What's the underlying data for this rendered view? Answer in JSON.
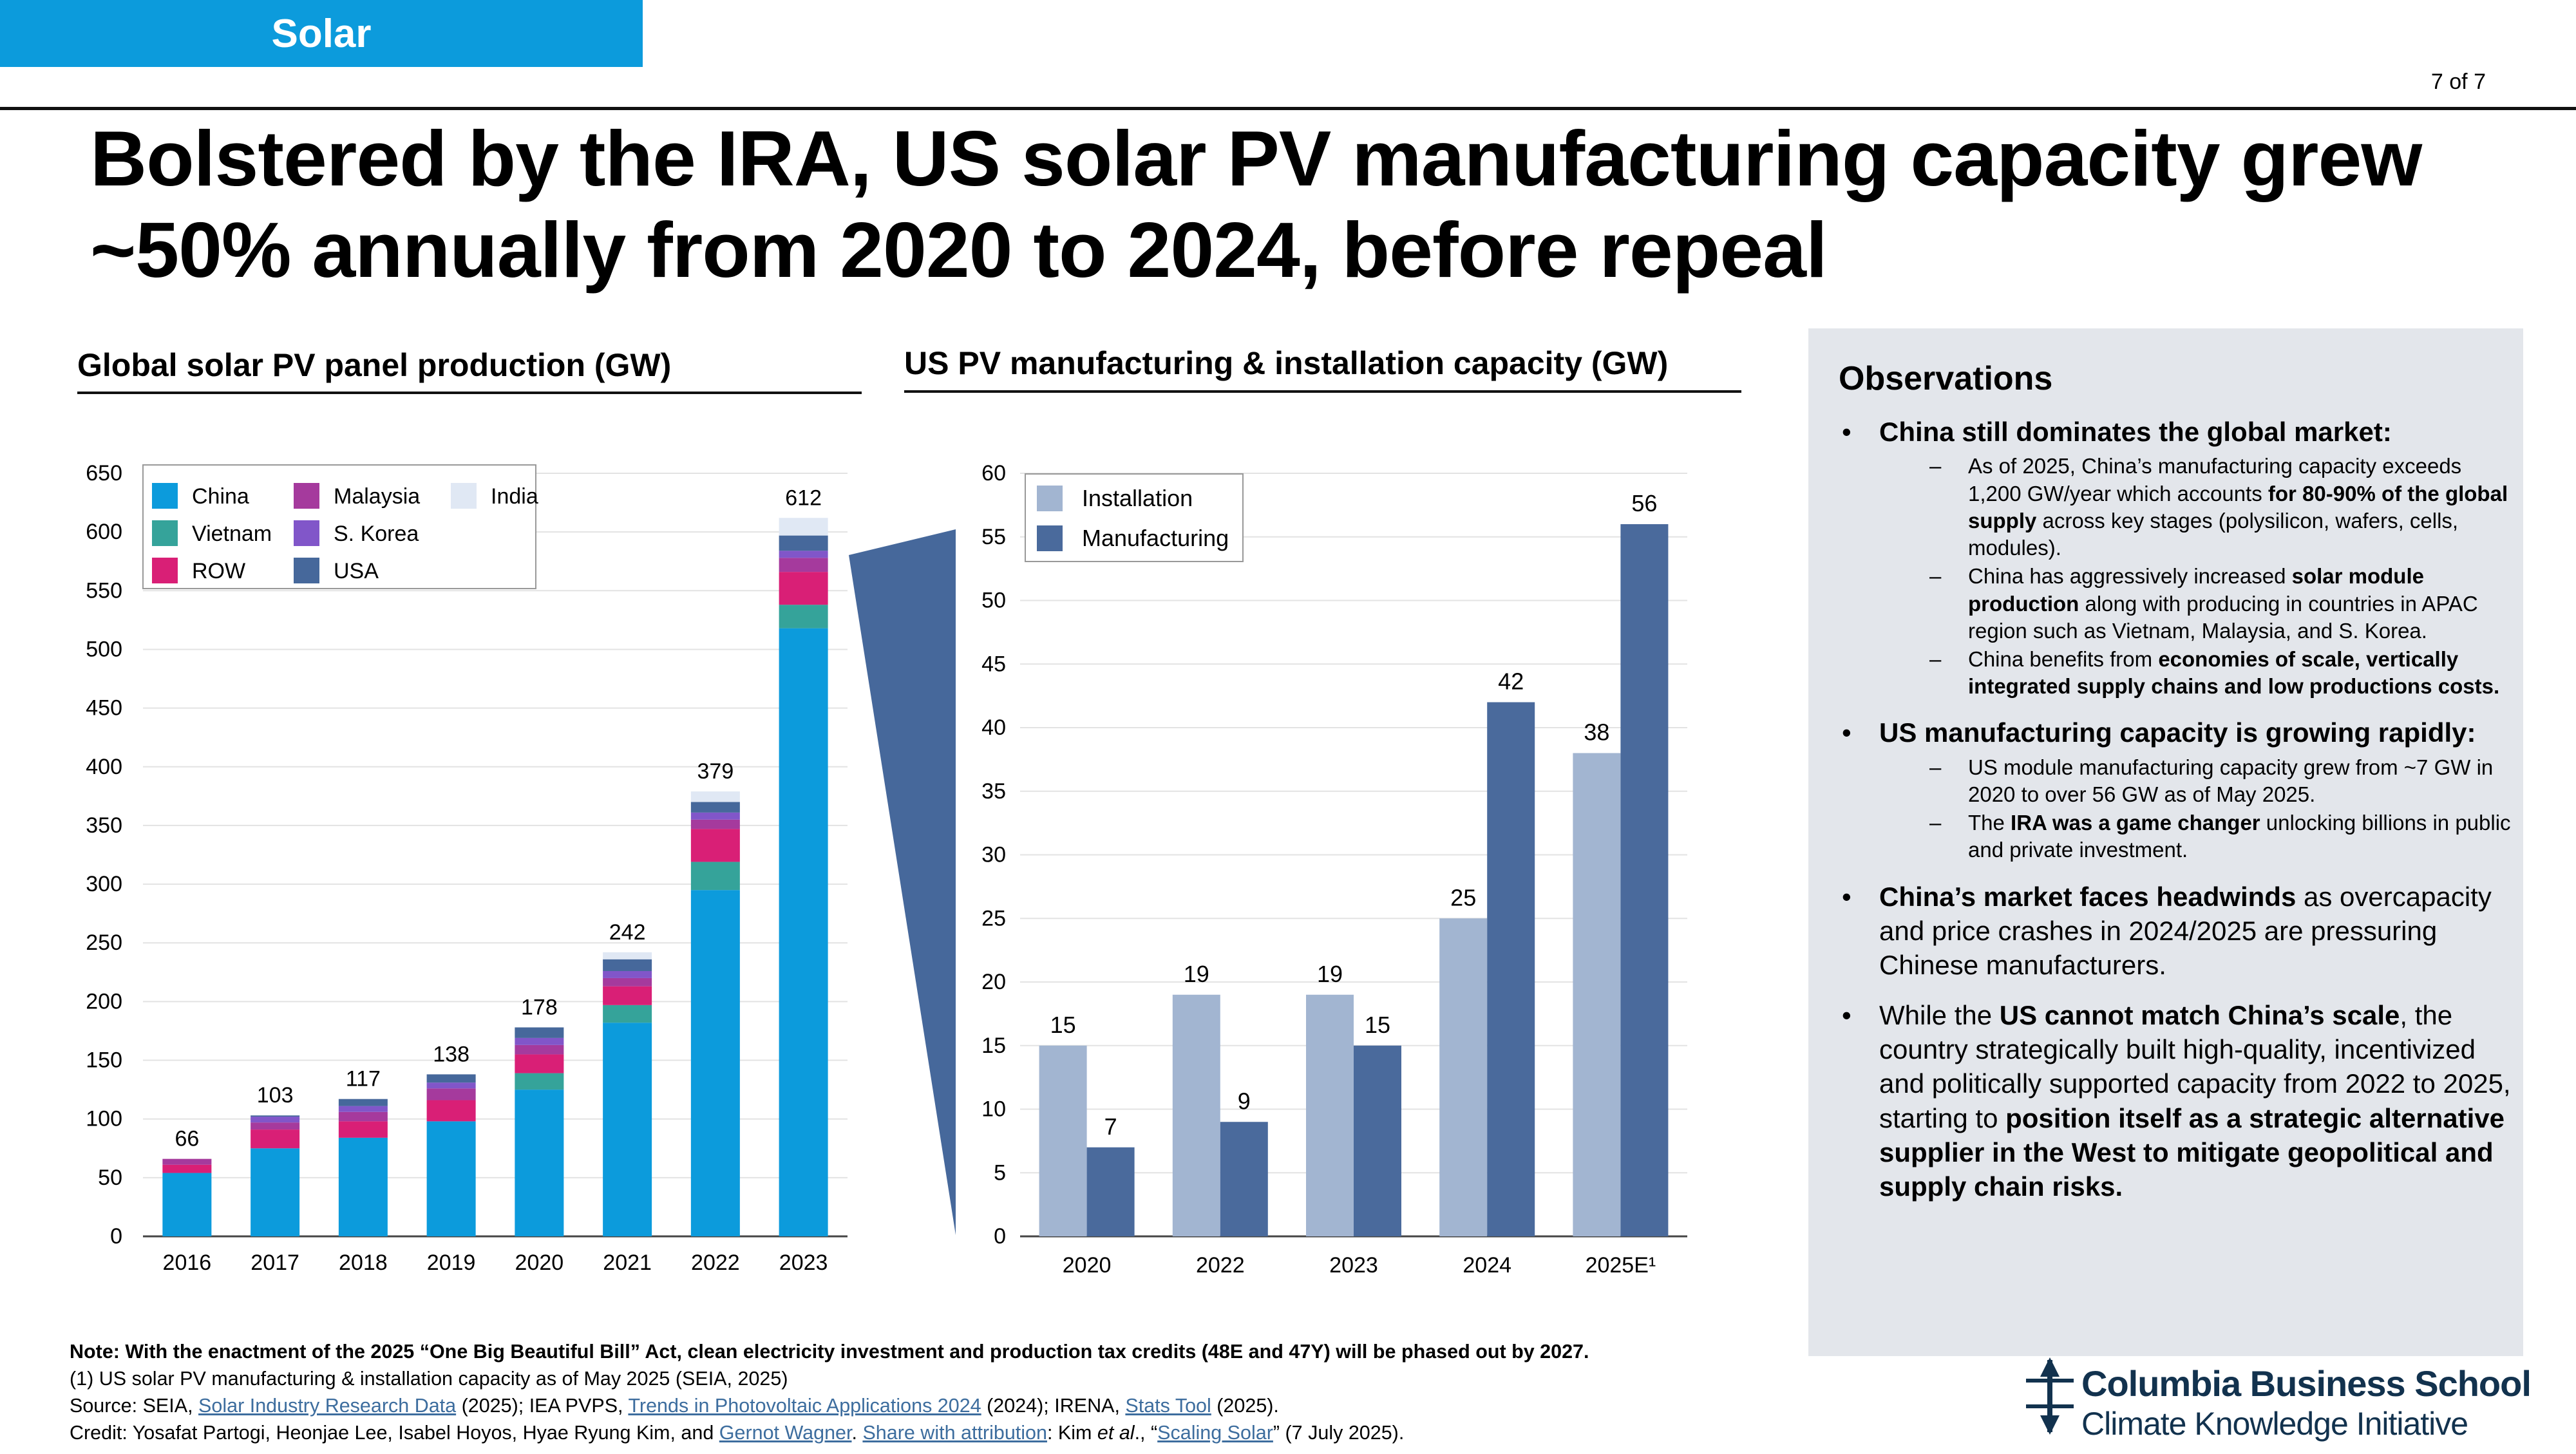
{
  "section_tab": "Solar",
  "page_number": "7 of 7",
  "headline": {
    "line1": "Bolstered by the IRA, US solar PV manufacturing capacity grew",
    "line2": "~50% annually from 2020 to 2024, before repeal"
  },
  "colors": {
    "China": "#0c9bdc",
    "Vietnam": "#35a39a",
    "ROW": "#d91f76",
    "Malaysia": "#a53a9d",
    "S. Korea": "#8156c9",
    "USA": "#46689b",
    "India": "#e0e8f4",
    "Installation": "#a2b5d1",
    "Manufacturing": "#4a6a9c",
    "callout": "#46689b",
    "panel": "#e3e6eb"
  },
  "chart_data": [
    {
      "type": "bar",
      "stacked": true,
      "title": "Global solar PV panel production (GW)",
      "categories": [
        "2016",
        "2017",
        "2018",
        "2019",
        "2020",
        "2021",
        "2022",
        "2023"
      ],
      "ylim": [
        0,
        650
      ],
      "yticks": [
        "0",
        "50",
        "100",
        "150",
        "200",
        "250",
        "300",
        "350",
        "400",
        "450",
        "500",
        "550",
        "600",
        "650"
      ],
      "legend_order": [
        "China",
        "Malaysia",
        "India",
        "Vietnam",
        "S. Korea",
        "ROW",
        "USA"
      ],
      "legend_position": "top-left",
      "series": [
        {
          "name": "China",
          "values": [
            54,
            75,
            84,
            98,
            125,
            182,
            295,
            518
          ]
        },
        {
          "name": "Vietnam",
          "values": [
            0,
            0,
            0,
            0,
            14,
            15,
            24,
            20
          ]
        },
        {
          "name": "ROW",
          "values": [
            7,
            16,
            14,
            18,
            16,
            16,
            28,
            28
          ]
        },
        {
          "name": "Malaysia",
          "values": [
            5,
            6,
            8,
            10,
            8,
            7,
            8,
            12
          ]
        },
        {
          "name": "S. Korea",
          "values": [
            0,
            5,
            5,
            5,
            6,
            6,
            6,
            6
          ]
        },
        {
          "name": "USA",
          "values": [
            0,
            1,
            6,
            7,
            9,
            10,
            9,
            13
          ]
        },
        {
          "name": "India",
          "values": [
            0,
            0,
            0,
            0,
            0,
            6,
            9,
            15
          ]
        }
      ],
      "totals": [
        "66",
        "103",
        "117",
        "138",
        "178",
        "242",
        "379",
        "612"
      ]
    },
    {
      "type": "bar",
      "title": "US PV manufacturing & installation capacity (GW)",
      "categories": [
        "2020",
        "2022",
        "2023",
        "2024",
        "2025E¹"
      ],
      "ylim": [
        0,
        60
      ],
      "yticks": [
        "0",
        "5",
        "10",
        "15",
        "20",
        "25",
        "30",
        "35",
        "40",
        "45",
        "50",
        "55",
        "60"
      ],
      "legend_position": "top-left",
      "series": [
        {
          "name": "Installation",
          "values": [
            15,
            19,
            19,
            25,
            38
          ],
          "labels": [
            "15",
            "19",
            "19",
            "25",
            "38"
          ]
        },
        {
          "name": "Manufacturing",
          "values": [
            7,
            9,
            15,
            42,
            56
          ],
          "labels": [
            "7",
            "9",
            "15",
            "42",
            "56"
          ]
        }
      ]
    }
  ],
  "observations": {
    "title": "Observations",
    "b1_head": "China still dominates the global market:",
    "b1_s1_a": "As of 2025, China’s manufacturing capacity exceeds 1,200 GW/year which accounts ",
    "b1_s1_b": "for 80-90% of the global supply",
    "b1_s1_c": " across key stages (polysilicon, wafers, cells, modules).",
    "b1_s2_a": "China has aggressively increased ",
    "b1_s2_b": "solar module production",
    "b1_s2_c": " along with producing in countries in APAC region such as Vietnam, Malaysia, and S. Korea.",
    "b1_s3_a": "China benefits from ",
    "b1_s3_b": "economies of scale, vertically integrated supply chains and low productions costs.",
    "b2_head": "US manufacturing capacity is growing rapidly:",
    "b2_s1": "US module manufacturing capacity grew from ~7 GW in 2020 to over 56 GW as of May 2025.",
    "b2_s2_a": "The ",
    "b2_s2_b": "IRA was a game changer",
    "b2_s2_c": " unlocking billions in public and private investment.",
    "b3_a": "China’s market faces headwinds",
    "b3_b": " as overcapacity and price crashes in 2024/2025 are pressuring Chinese manufacturers.",
    "b4_a": "While the ",
    "b4_b": "US cannot match China’s scale",
    "b4_c": ", the country strategically built high-quality, incentivized and politically supported capacity from 2022 to 2025, starting to ",
    "b4_d": "position itself as a strategic alternative supplier in the West to mitigate geopolitical and supply chain risks."
  },
  "footnotes": {
    "note": "Note: With the enactment of the 2025 “One Big Beautiful Bill” Act, clean electricity investment and production tax credits (48E and 47Y) will be phased out by 2027.",
    "fn1": "(1) US solar PV manufacturing & installation capacity as of May 2025 (SEIA, 2025)",
    "src_a": "Source: SEIA, ",
    "src_link1": "Solar Industry Research Data",
    "src_b": " (2025); IEA PVPS, ",
    "src_link2": "Trends in Photovoltaic Applications 2024",
    "src_c": " (2024); IRENA, ",
    "src_link3": "Stats Tool",
    "src_d": " (2025).",
    "credit_a": "Credit: Yosafat Partogi, Heonjae Lee, Isabel Hoyos, Hyae Ryung Kim, and ",
    "credit_link1": "Gernot Wagner",
    "credit_b": ". ",
    "credit_link2": "Share with attribution",
    "credit_c": ": Kim ",
    "credit_etal": "et al",
    "credit_d": "., “",
    "credit_link3": "Scaling Solar",
    "credit_e": "” (7 July 2025)."
  },
  "logo": {
    "name": "Columbia Business School",
    "sub": "Climate Knowledge Initiative"
  }
}
